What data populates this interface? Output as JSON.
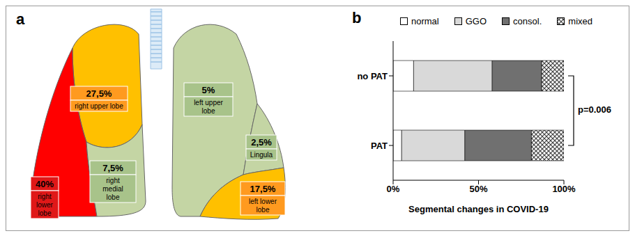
{
  "diagram": {
    "panel": "a",
    "lobes": [
      {
        "name": "right upper lobe",
        "percent": "27,5%",
        "color": "#ffc000"
      },
      {
        "name": "right lower lobe",
        "percent": "40%",
        "color": "#ff0000"
      },
      {
        "name": "right medial lobe",
        "percent": "7,5%",
        "color": "#c4d5a4"
      },
      {
        "name": "left upper lobe",
        "percent": "5%",
        "color": "#c4d5a4"
      },
      {
        "name": "Lingula",
        "percent": "2,5%",
        "color": "#c4d5a4"
      },
      {
        "name": "left lower lobe",
        "percent": "17,5%",
        "color": "#ffc000"
      }
    ]
  },
  "chart_data": {
    "type": "bar",
    "panel": "b",
    "orientation": "horizontal",
    "stacked": true,
    "grid": false,
    "legend": "top",
    "categories": [
      "no PAT",
      "PAT"
    ],
    "series": [
      {
        "name": "normal",
        "color": "#ffffff",
        "values": [
          12,
          5
        ]
      },
      {
        "name": "GGO",
        "color": "#d9d9d9",
        "values": [
          46,
          37
        ]
      },
      {
        "name": "consol.",
        "color": "#707070",
        "values": [
          29,
          39
        ]
      },
      {
        "name": "mixed",
        "color": "#404040",
        "marker": "crosshatch",
        "values": [
          13,
          19
        ]
      }
    ],
    "xlim": [
      0,
      100
    ],
    "xticks": [
      {
        "value": 0,
        "label": "0%"
      },
      {
        "value": 50,
        "label": "50%"
      },
      {
        "value": 100,
        "label": "100%"
      }
    ],
    "x_label": "Segmental changes in COVID-19",
    "annotations": [
      {
        "text": "p=0.006",
        "between": [
          "no PAT",
          "PAT"
        ]
      }
    ]
  }
}
